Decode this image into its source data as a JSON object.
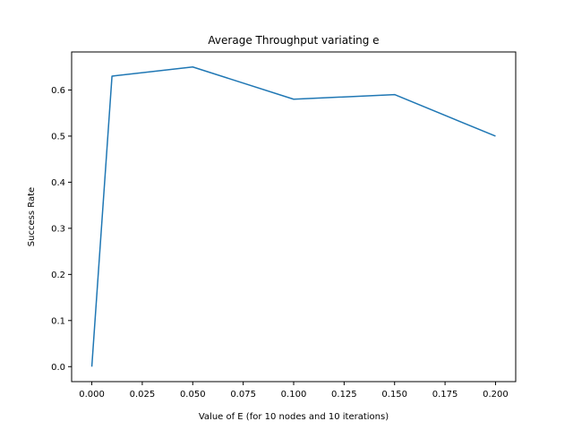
{
  "chart_data": {
    "type": "line",
    "title": "Average Throughput variating e",
    "xlabel": "Value of E (for 10 nodes and 10 iterations)",
    "ylabel": "Success Rate",
    "grid": false,
    "legend": "none",
    "xlim": [
      -0.01,
      0.21
    ],
    "ylim": [
      -0.0325,
      0.6825
    ],
    "x_ticks": [
      0.0,
      0.025,
      0.05,
      0.075,
      0.1,
      0.125,
      0.15,
      0.175,
      0.2
    ],
    "x_tick_labels": [
      "0.000",
      "0.025",
      "0.050",
      "0.075",
      "0.100",
      "0.125",
      "0.150",
      "0.175",
      "0.200"
    ],
    "y_ticks": [
      0.0,
      0.1,
      0.2,
      0.3,
      0.4,
      0.5,
      0.6
    ],
    "y_tick_labels": [
      "0.0",
      "0.1",
      "0.2",
      "0.3",
      "0.4",
      "0.5",
      "0.6"
    ],
    "series": [
      {
        "color": "#1f77b4",
        "x": [
          0.0,
          0.01,
          0.05,
          0.1,
          0.15,
          0.2
        ],
        "y": [
          0.0,
          0.63,
          0.65,
          0.58,
          0.59,
          0.5
        ]
      }
    ]
  }
}
